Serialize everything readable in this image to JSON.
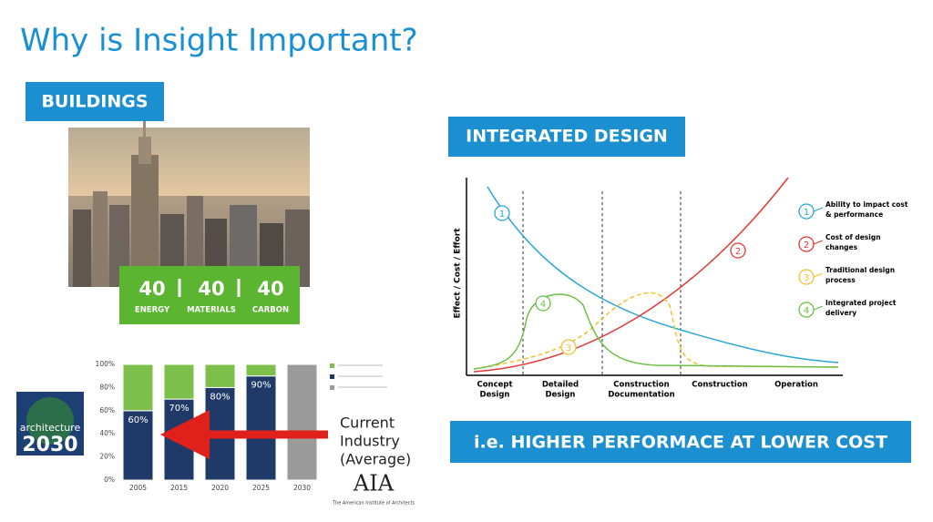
{
  "title": "Why is Insight Important?",
  "buildings": {
    "heading": "BUILDINGS",
    "stats": [
      {
        "value": 40,
        "label": "ENERGY"
      },
      {
        "value": 40,
        "label": "MATERIALS"
      },
      {
        "value": 40,
        "label": "CARBON"
      }
    ]
  },
  "logo": {
    "line1": "architecture",
    "line2": "2030"
  },
  "callout": {
    "lines": [
      "Current",
      "Industry",
      "(Average)"
    ]
  },
  "aia": {
    "mark": "AIA",
    "caption": "The American Institute of Architects"
  },
  "chart_data": {
    "type": "bar",
    "stacked": true,
    "categories": [
      "2005",
      "2015",
      "2020",
      "2025",
      "2030"
    ],
    "series": [
      {
        "color": "#1f3a68",
        "values": [
          60,
          70,
          80,
          90,
          null
        ],
        "value_labels": [
          "60%",
          "70%",
          "80%",
          "90%",
          null
        ]
      },
      {
        "color": "#7cbf4a",
        "values": [
          40,
          30,
          20,
          10,
          null
        ]
      },
      {
        "color": "#9b9b9b",
        "values": [
          null,
          null,
          null,
          null,
          100
        ]
      }
    ],
    "ylim": [
      0,
      100
    ],
    "yticks": [
      {
        "value": 0,
        "label": "0%"
      },
      {
        "value": 20,
        "label": "20%"
      },
      {
        "value": 40,
        "label": "40%"
      },
      {
        "value": 60,
        "label": "60%"
      },
      {
        "value": 80,
        "label": "80%"
      },
      {
        "value": 100,
        "label": "100%"
      }
    ]
  },
  "integrated_design": {
    "heading": "INTEGRATED DESIGN",
    "y_axis_label": "Effect / Cost / Effort",
    "phases": [
      [
        "Concept",
        "Design"
      ],
      [
        "Detailed",
        "Design"
      ],
      [
        "Construction",
        "Documentation"
      ],
      [
        "Construction"
      ],
      [
        "Operation"
      ]
    ],
    "curves": [
      {
        "marker": "1",
        "color": "#2aa6d8",
        "label": [
          "Ability to impact cost",
          "& performance"
        ]
      },
      {
        "marker": "2",
        "color": "#e53935",
        "label": [
          "Cost of design",
          "changes"
        ]
      },
      {
        "marker": "3",
        "color": "#f2c12e",
        "label": [
          "Traditional design",
          "process"
        ]
      },
      {
        "marker": "4",
        "color": "#6cbf45",
        "label": [
          "Integrated project",
          "delivery"
        ]
      }
    ],
    "conclusion": "i.e. HIGHER PERFORMACE AT LOWER COST"
  }
}
